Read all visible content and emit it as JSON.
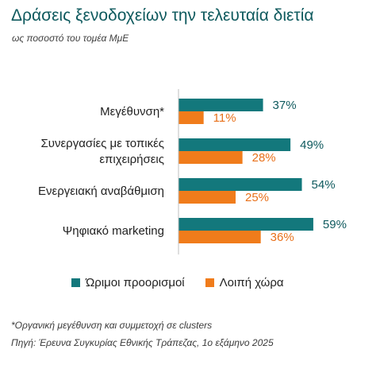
{
  "title": "Δράσεις ξενοδοχείων την τελευταία διετία",
  "subtitle": "ως ποσοστό του τομέα ΜμΕ",
  "colors": {
    "series1": "#13787c",
    "series2": "#f07c1b"
  },
  "legend": [
    {
      "name": "Ώριμοι προορισμοί"
    },
    {
      "name": "Λοιπή χώρα"
    }
  ],
  "chart_data": {
    "type": "bar",
    "orientation": "horizontal",
    "categories": [
      [
        "Μεγέθυνση*"
      ],
      [
        "Συνεργασίες με τοπικές",
        "επιχειρήσεις"
      ],
      [
        "Ενεργειακή αναβάθμιση"
      ],
      [
        "Ψηφιακό marketing"
      ]
    ],
    "series": [
      {
        "name": "Ώριμοι προορισμοί",
        "values": [
          37,
          49,
          54,
          59
        ],
        "labels": [
          "37%",
          "49%",
          "54%",
          "59%"
        ]
      },
      {
        "name": "Λοιπή χώρα",
        "values": [
          11,
          28,
          25,
          36
        ],
        "labels": [
          "11%",
          "28%",
          "25%",
          "36%"
        ]
      }
    ],
    "xlim": [
      0,
      100
    ],
    "grid": false,
    "legend_position": "bottom"
  },
  "footnotes": [
    "*Οργανική μεγέθυνση και συμμετοχή σε clusters",
    "Πηγή: Έρευνα Συγκυρίας Εθνικής Τράπεζας, 1ο εξάμηνο 2025"
  ]
}
